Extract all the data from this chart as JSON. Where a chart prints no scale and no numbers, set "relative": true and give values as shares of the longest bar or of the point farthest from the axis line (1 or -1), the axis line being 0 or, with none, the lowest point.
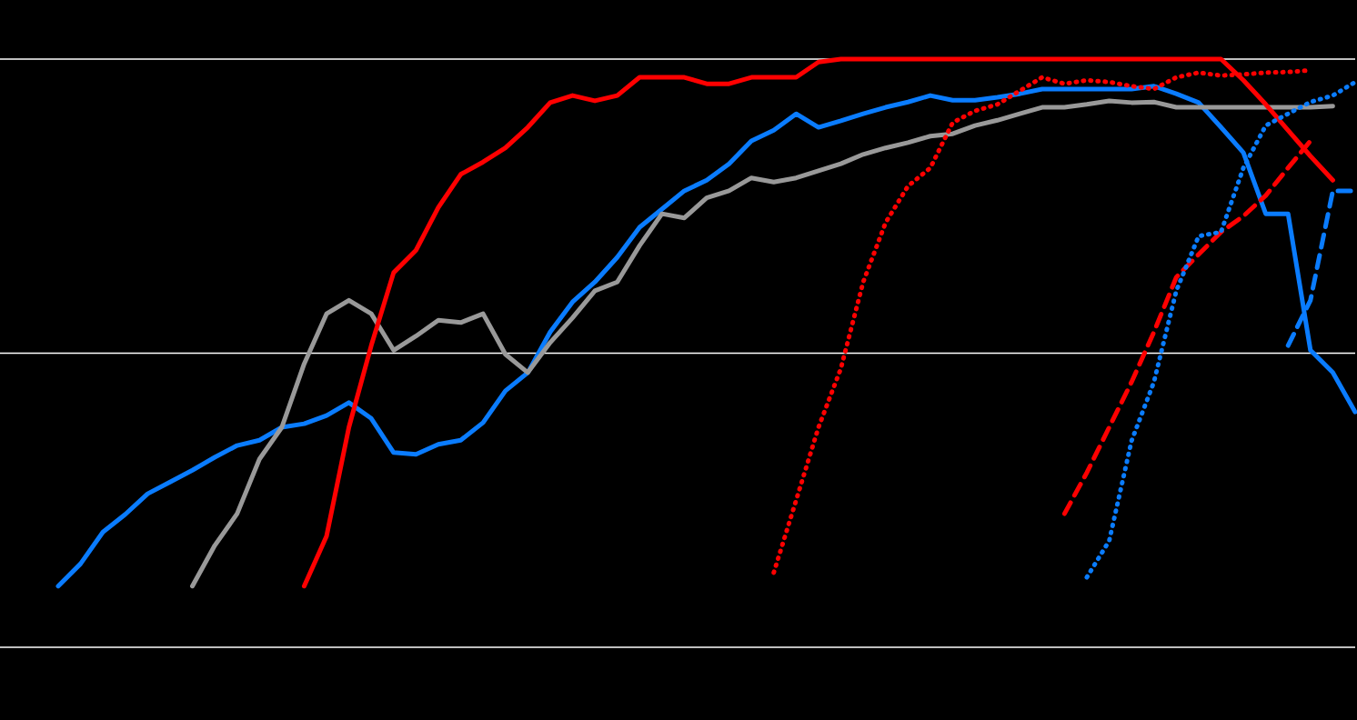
{
  "chart_data": {
    "type": "line",
    "relative": true,
    "ref_lines": [
      {
        "axis": "y",
        "value": 0.5,
        "color": "#ffffff"
      },
      {
        "axis": "y",
        "value": 1,
        "color": "#ffffff"
      }
    ],
    "categories": [
      null,
      null,
      null,
      null,
      null,
      null,
      null,
      null,
      null,
      null,
      null,
      null,
      null,
      null,
      null,
      null,
      null,
      null,
      null,
      null,
      null,
      null,
      null,
      null,
      null,
      null,
      null,
      null,
      null,
      null,
      null,
      null,
      null,
      null,
      null,
      null,
      null,
      null,
      null,
      null,
      null,
      null,
      null,
      null,
      null,
      null,
      null,
      null,
      null,
      null,
      null,
      null,
      null,
      null,
      null,
      null,
      null,
      null,
      null
    ],
    "series": [
      {
        "color": "#0a7cff",
        "line_style": "solid",
        "values": [
          0.104,
          0.142,
          0.196,
          0.226,
          0.261,
          0.281,
          0.301,
          0.323,
          0.343,
          0.352,
          0.374,
          0.38,
          0.394,
          0.416,
          0.389,
          0.331,
          0.328,
          0.345,
          0.352,
          0.382,
          0.436,
          0.467,
          0.536,
          0.587,
          0.621,
          0.663,
          0.714,
          0.745,
          0.776,
          0.794,
          0.822,
          0.861,
          0.879,
          0.907,
          0.884,
          0.895,
          0.907,
          0.918,
          0.927,
          0.938,
          0.93,
          0.93,
          0.935,
          0.941,
          0.949,
          0.949,
          0.949,
          0.949,
          0.949,
          0.954,
          0.941,
          0.926,
          0.884,
          0.841,
          0.737,
          0.737,
          0.505,
          0.467,
          0.4
        ]
      },
      {
        "color": "#999999",
        "line_style": "solid",
        "values": [
          null,
          null,
          null,
          null,
          null,
          null,
          0.104,
          0.173,
          0.227,
          0.32,
          0.374,
          0.482,
          0.567,
          0.59,
          0.567,
          0.505,
          0.529,
          0.556,
          0.552,
          0.567,
          0.498,
          0.467,
          0.518,
          0.56,
          0.606,
          0.621,
          0.683,
          0.737,
          0.73,
          0.764,
          0.776,
          0.798,
          0.791,
          0.798,
          0.81,
          0.822,
          0.838,
          0.849,
          0.858,
          0.869,
          0.873,
          0.887,
          0.896,
          0.907,
          0.918,
          0.918,
          0.923,
          0.929,
          0.926,
          0.927,
          0.918,
          0.918,
          0.918,
          0.918,
          0.918,
          0.918,
          0.918,
          0.92,
          null
        ]
      },
      {
        "color": "#ff0000",
        "line_style": "solid",
        "values": [
          null,
          null,
          null,
          null,
          null,
          null,
          null,
          null,
          null,
          null,
          null,
          0.104,
          0.189,
          0.374,
          0.513,
          0.637,
          0.675,
          0.748,
          0.804,
          0.825,
          0.849,
          0.884,
          0.926,
          0.938,
          0.929,
          0.938,
          0.969,
          0.969,
          0.969,
          0.958,
          0.958,
          0.969,
          0.969,
          0.969,
          0.995,
          1,
          1,
          1,
          1,
          1,
          1,
          1,
          1,
          1,
          1,
          1,
          1,
          1,
          1,
          1,
          1,
          1,
          1,
          0.964,
          0.923,
          0.879,
          0.835,
          0.794,
          null
        ]
      },
      {
        "color": "#ff0000",
        "line_style": "dotted",
        "values": [
          null,
          null,
          null,
          null,
          null,
          null,
          null,
          null,
          null,
          null,
          null,
          null,
          null,
          null,
          null,
          null,
          null,
          null,
          null,
          null,
          null,
          null,
          null,
          null,
          null,
          null,
          null,
          null,
          null,
          null,
          null,
          null,
          0.127,
          0.25,
          0.374,
          0.474,
          0.621,
          0.722,
          0.784,
          0.815,
          0.892,
          0.912,
          0.923,
          0.946,
          0.969,
          0.958,
          0.964,
          0.961,
          0.954,
          0.949,
          0.969,
          0.977,
          0.972,
          0.974,
          0.977,
          0.978,
          0.981,
          null,
          null
        ]
      },
      {
        "color": "#ff0000",
        "line_style": "dashed",
        "values": [
          null,
          null,
          null,
          null,
          null,
          null,
          null,
          null,
          null,
          null,
          null,
          null,
          null,
          null,
          null,
          null,
          null,
          null,
          null,
          null,
          null,
          null,
          null,
          null,
          null,
          null,
          null,
          null,
          null,
          null,
          null,
          null,
          null,
          null,
          null,
          null,
          null,
          null,
          null,
          null,
          null,
          null,
          null,
          null,
          null,
          0.227,
          0.297,
          0.374,
          0.451,
          0.536,
          0.629,
          0.668,
          0.706,
          0.733,
          0.768,
          0.815,
          0.861,
          null,
          null
        ]
      },
      {
        "color": "#0a7cff",
        "line_style": "dotted",
        "values": [
          null,
          null,
          null,
          null,
          null,
          null,
          null,
          null,
          null,
          null,
          null,
          null,
          null,
          null,
          null,
          null,
          null,
          null,
          null,
          null,
          null,
          null,
          null,
          null,
          null,
          null,
          null,
          null,
          null,
          null,
          null,
          null,
          null,
          null,
          null,
          null,
          null,
          null,
          null,
          null,
          null,
          null,
          null,
          null,
          null,
          null,
          0.119,
          0.181,
          0.351,
          0.451,
          0.606,
          0.699,
          0.706,
          0.815,
          0.887,
          0.907,
          0.927,
          0.938,
          0.961
        ]
      },
      {
        "color": "#0a7cff",
        "line_style": "dashed",
        "values": [
          null,
          null,
          null,
          null,
          null,
          null,
          null,
          null,
          null,
          null,
          null,
          null,
          null,
          null,
          null,
          null,
          null,
          null,
          null,
          null,
          null,
          null,
          null,
          null,
          null,
          null,
          null,
          null,
          null,
          null,
          null,
          null,
          null,
          null,
          null,
          null,
          null,
          null,
          null,
          null,
          null,
          null,
          null,
          null,
          null,
          null,
          null,
          null,
          null,
          null,
          null,
          null,
          null,
          null,
          null,
          0.513,
          0.59,
          0.776,
          0.776
        ]
      }
    ]
  }
}
